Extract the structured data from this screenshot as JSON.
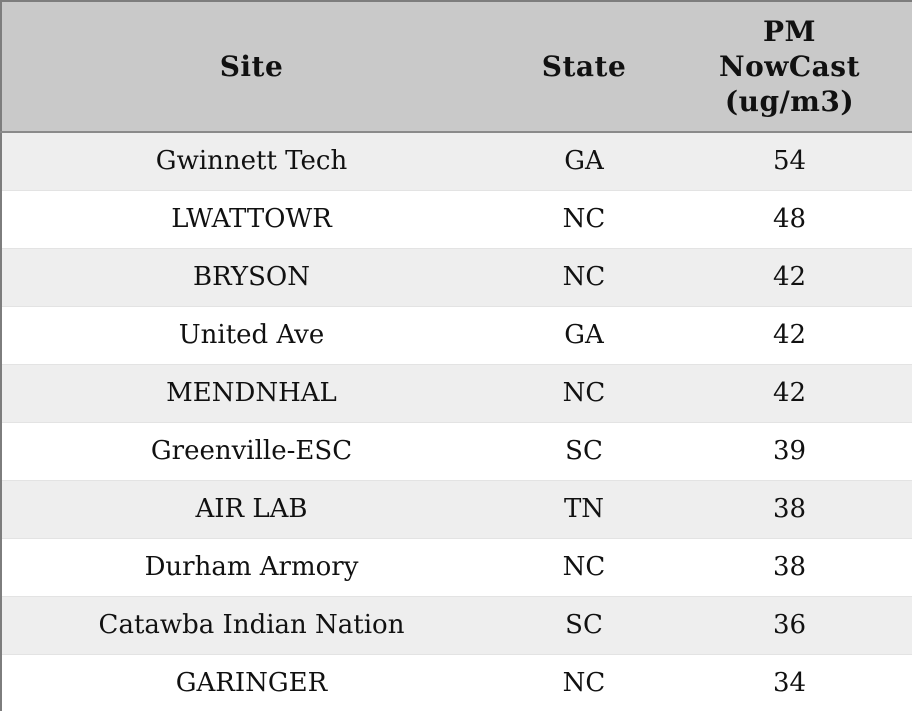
{
  "table": {
    "headers": {
      "site": "Site",
      "state": "State",
      "pm": "PM NowCast (ug/m3)"
    },
    "rows": [
      {
        "site": "Gwinnett Tech",
        "state": "GA",
        "pm": "54"
      },
      {
        "site": "LWATTOWR",
        "state": "NC",
        "pm": "48"
      },
      {
        "site": "BRYSON",
        "state": "NC",
        "pm": "42"
      },
      {
        "site": "United Ave",
        "state": "GA",
        "pm": "42"
      },
      {
        "site": "MENDNHAL",
        "state": "NC",
        "pm": "42"
      },
      {
        "site": "Greenville-ESC",
        "state": "SC",
        "pm": "39"
      },
      {
        "site": "AIR LAB",
        "state": "TN",
        "pm": "38"
      },
      {
        "site": "Durham Armory",
        "state": "NC",
        "pm": "38"
      },
      {
        "site": "Catawba Indian Nation",
        "state": "SC",
        "pm": "36"
      },
      {
        "site": "GARINGER",
        "state": "NC",
        "pm": "34"
      }
    ]
  },
  "colors": {
    "header_bg": "#c9c9c9",
    "row_alt_bg": "#eeeeee",
    "row_bg": "#ffffff",
    "border": "#7d7d7d",
    "text": "#111111"
  },
  "chart_data": {
    "type": "table",
    "title": "",
    "columns": [
      "Site",
      "State",
      "PM NowCast (ug/m3)"
    ],
    "rows": [
      [
        "Gwinnett Tech",
        "GA",
        54
      ],
      [
        "LWATTOWR",
        "NC",
        48
      ],
      [
        "BRYSON",
        "NC",
        42
      ],
      [
        "United Ave",
        "GA",
        42
      ],
      [
        "MENDNHAL",
        "NC",
        42
      ],
      [
        "Greenville-ESC",
        "SC",
        39
      ],
      [
        "AIR LAB",
        "TN",
        38
      ],
      [
        "Durham Armory",
        "NC",
        38
      ],
      [
        "Catawba Indian Nation",
        "SC",
        36
      ],
      [
        "GARINGER",
        "NC",
        34
      ]
    ],
    "layout": {
      "header_background": "#c9c9c9",
      "zebra_striping": true,
      "values_are": "PM NowCast concentration in ug/m3"
    }
  }
}
